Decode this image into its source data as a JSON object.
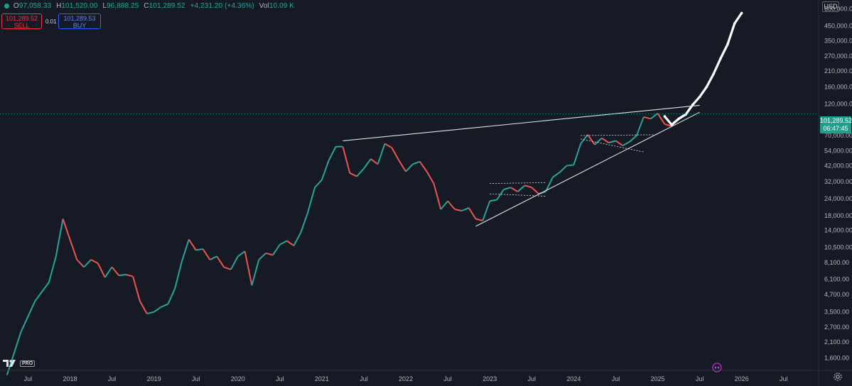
{
  "header": {
    "open_label": "O",
    "open_value": "97,058.33",
    "high_label": "H",
    "high_value": "101,520.00",
    "low_label": "L",
    "low_value": "96,888.25",
    "close_label": "C",
    "close_value": "101,289.52",
    "change_value": "+4,231.20 (+4.36%)",
    "volume_label": "Vol",
    "volume_value": "10.09 K"
  },
  "trade": {
    "sell_price": "101,289.52",
    "sell_label": "SELL",
    "spread": "0.01",
    "buy_price": "101,289.53",
    "buy_label": "BUY"
  },
  "currency_button": "USD",
  "last_price": {
    "price": "101,289.52",
    "countdown": "06:47:45"
  },
  "logo_text": "PRO",
  "colors": {
    "background": "#161a25",
    "up": "#26a69a",
    "down": "#ef5350",
    "accent": "#1e9e8c",
    "sell": "#f23645",
    "buy": "#2962ff"
  },
  "icons": [
    "tradingview-logo-icon",
    "replay-icon",
    "settings-icon"
  ],
  "chart_data": {
    "type": "line",
    "title": "",
    "xlabel": "",
    "ylabel": "",
    "scale": "log",
    "ylim": [
      1500,
      620000
    ],
    "xlim": [
      "2017-03",
      "2026-12"
    ],
    "y_ticks": [
      "600,000.00",
      "450,000.00",
      "350,000.00",
      "270,000.00",
      "210,000.00",
      "160,000.00",
      "120,000.00",
      "70,000.00",
      "54,000.00",
      "42,000.00",
      "32,000.00",
      "24,000.00",
      "18,000.00",
      "14,000.00",
      "10,500.00",
      "8,100.00",
      "6,100.00",
      "4,700.00",
      "3,500.00",
      "2,700.00",
      "2,100.00",
      "1,600.00"
    ],
    "y_tick_values": [
      600000,
      450000,
      350000,
      270000,
      210000,
      160000,
      120000,
      70000,
      54000,
      42000,
      32000,
      24000,
      18000,
      14000,
      10500,
      8100,
      6100,
      4700,
      3500,
      2700,
      2100,
      1600
    ],
    "x_ticks": [
      {
        "label": "Jul",
        "date": "2017-07"
      },
      {
        "label": "2018",
        "date": "2018-01"
      },
      {
        "label": "Jul",
        "date": "2018-07"
      },
      {
        "label": "2019",
        "date": "2019-01"
      },
      {
        "label": "Jul",
        "date": "2019-07"
      },
      {
        "label": "2020",
        "date": "2020-01"
      },
      {
        "label": "Jul",
        "date": "2020-07"
      },
      {
        "label": "2021",
        "date": "2021-01"
      },
      {
        "label": "Jul",
        "date": "2021-07"
      },
      {
        "label": "2022",
        "date": "2022-01"
      },
      {
        "label": "Jul",
        "date": "2022-07"
      },
      {
        "label": "2023",
        "date": "2023-01"
      },
      {
        "label": "Jul",
        "date": "2023-07"
      },
      {
        "label": "2024",
        "date": "2024-01"
      },
      {
        "label": "Jul",
        "date": "2024-07"
      },
      {
        "label": "2025",
        "date": "2025-01"
      },
      {
        "label": "Jul",
        "date": "2025-07"
      },
      {
        "label": "2026",
        "date": "2026-01"
      },
      {
        "label": "Jul",
        "date": "2026-07"
      }
    ],
    "series": [
      {
        "values": [
          [
            "2017-04",
            1200
          ],
          [
            "2017-06",
            2500
          ],
          [
            "2017-08",
            4200
          ],
          [
            "2017-10",
            5800
          ],
          [
            "2017-11",
            9000
          ],
          [
            "2017-12",
            17000
          ],
          [
            "2018-01",
            12000
          ],
          [
            "2018-02",
            8500
          ],
          [
            "2018-03",
            7500
          ],
          [
            "2018-04",
            8500
          ],
          [
            "2018-05",
            8000
          ],
          [
            "2018-06",
            6300
          ],
          [
            "2018-07",
            7500
          ],
          [
            "2018-08",
            6500
          ],
          [
            "2018-09",
            6600
          ],
          [
            "2018-10",
            6400
          ],
          [
            "2018-11",
            4200
          ],
          [
            "2018-12",
            3400
          ],
          [
            "2019-01",
            3500
          ],
          [
            "2019-02",
            3800
          ],
          [
            "2019-03",
            4000
          ],
          [
            "2019-04",
            5200
          ],
          [
            "2019-05",
            8300
          ],
          [
            "2019-06",
            12000
          ],
          [
            "2019-07",
            10000
          ],
          [
            "2019-08",
            10200
          ],
          [
            "2019-09",
            8500
          ],
          [
            "2019-10",
            9000
          ],
          [
            "2019-11",
            7500
          ],
          [
            "2019-12",
            7200
          ],
          [
            "2020-01",
            9000
          ],
          [
            "2020-02",
            9800
          ],
          [
            "2020-03",
            5500
          ],
          [
            "2020-04",
            8500
          ],
          [
            "2020-05",
            9500
          ],
          [
            "2020-06",
            9200
          ],
          [
            "2020-07",
            11000
          ],
          [
            "2020-08",
            11700
          ],
          [
            "2020-09",
            10800
          ],
          [
            "2020-10",
            13500
          ],
          [
            "2020-11",
            19000
          ],
          [
            "2020-12",
            29000
          ],
          [
            "2021-01",
            33000
          ],
          [
            "2021-02",
            46000
          ],
          [
            "2021-03",
            58000
          ],
          [
            "2021-04",
            58000
          ],
          [
            "2021-05",
            37000
          ],
          [
            "2021-06",
            35000
          ],
          [
            "2021-07",
            40000
          ],
          [
            "2021-08",
            47000
          ],
          [
            "2021-09",
            43000
          ],
          [
            "2021-10",
            61000
          ],
          [
            "2021-11",
            57000
          ],
          [
            "2021-12",
            46000
          ],
          [
            "2022-01",
            38000
          ],
          [
            "2022-02",
            43000
          ],
          [
            "2022-03",
            45000
          ],
          [
            "2022-04",
            38000
          ],
          [
            "2022-05",
            31000
          ],
          [
            "2022-06",
            20000
          ],
          [
            "2022-07",
            23000
          ],
          [
            "2022-08",
            20000
          ],
          [
            "2022-09",
            19500
          ],
          [
            "2022-10",
            20500
          ],
          [
            "2022-11",
            17000
          ],
          [
            "2022-12",
            16500
          ],
          [
            "2023-01",
            23000
          ],
          [
            "2023-02",
            23500
          ],
          [
            "2023-03",
            28000
          ],
          [
            "2023-04",
            29000
          ],
          [
            "2023-05",
            27000
          ],
          [
            "2023-06",
            30000
          ],
          [
            "2023-07",
            29000
          ],
          [
            "2023-08",
            26000
          ],
          [
            "2023-09",
            27000
          ],
          [
            "2023-10",
            34500
          ],
          [
            "2023-11",
            37500
          ],
          [
            "2023-12",
            42000
          ],
          [
            "2024-01",
            42500
          ],
          [
            "2024-02",
            61000
          ],
          [
            "2024-03",
            71000
          ],
          [
            "2024-04",
            60000
          ],
          [
            "2024-05",
            67000
          ],
          [
            "2024-06",
            62000
          ],
          [
            "2024-07",
            64000
          ],
          [
            "2024-08",
            59000
          ],
          [
            "2024-09",
            63000
          ],
          [
            "2024-10",
            70000
          ],
          [
            "2024-11",
            96000
          ],
          [
            "2024-12",
            93000
          ],
          [
            "2025-01",
            102000
          ],
          [
            "2025-02",
            85000
          ],
          [
            "2025-03",
            82000
          ],
          [
            "2025-04",
            94000
          ],
          [
            "2025-05",
            101289.52
          ]
        ]
      },
      {
        "values": [
          [
            "2025-02",
            97000
          ],
          [
            "2025-03",
            84000
          ],
          [
            "2025-04",
            93000
          ],
          [
            "2025-05",
            100000
          ],
          [
            "2025-06",
            118000
          ],
          [
            "2025-07",
            135000
          ],
          [
            "2025-08",
            160000
          ],
          [
            "2025-09",
            200000
          ],
          [
            "2025-10",
            260000
          ],
          [
            "2025-11",
            330000
          ],
          [
            "2025-12",
            470000
          ],
          [
            "2026-01",
            560000
          ]
        ]
      }
    ],
    "trendlines": [
      {
        "from": [
          "2021-04",
          64000
        ],
        "to": [
          "2025-07",
          117000
        ]
      },
      {
        "from": [
          "2022-11",
          15000
        ],
        "to": [
          "2025-07",
          104000
        ]
      },
      {
        "from": [
          "2023-01",
          31000
        ],
        "to": [
          "2023-09",
          31500
        ]
      },
      {
        "from": [
          "2023-01",
          26000
        ],
        "to": [
          "2023-09",
          25000
        ]
      },
      {
        "from": [
          "2024-02",
          70000
        ],
        "to": [
          "2025-01",
          71000
        ]
      },
      {
        "from": [
          "2024-02",
          66000
        ],
        "to": [
          "2024-11",
          53000
        ]
      }
    ],
    "last_price_line": 101289.52
  }
}
